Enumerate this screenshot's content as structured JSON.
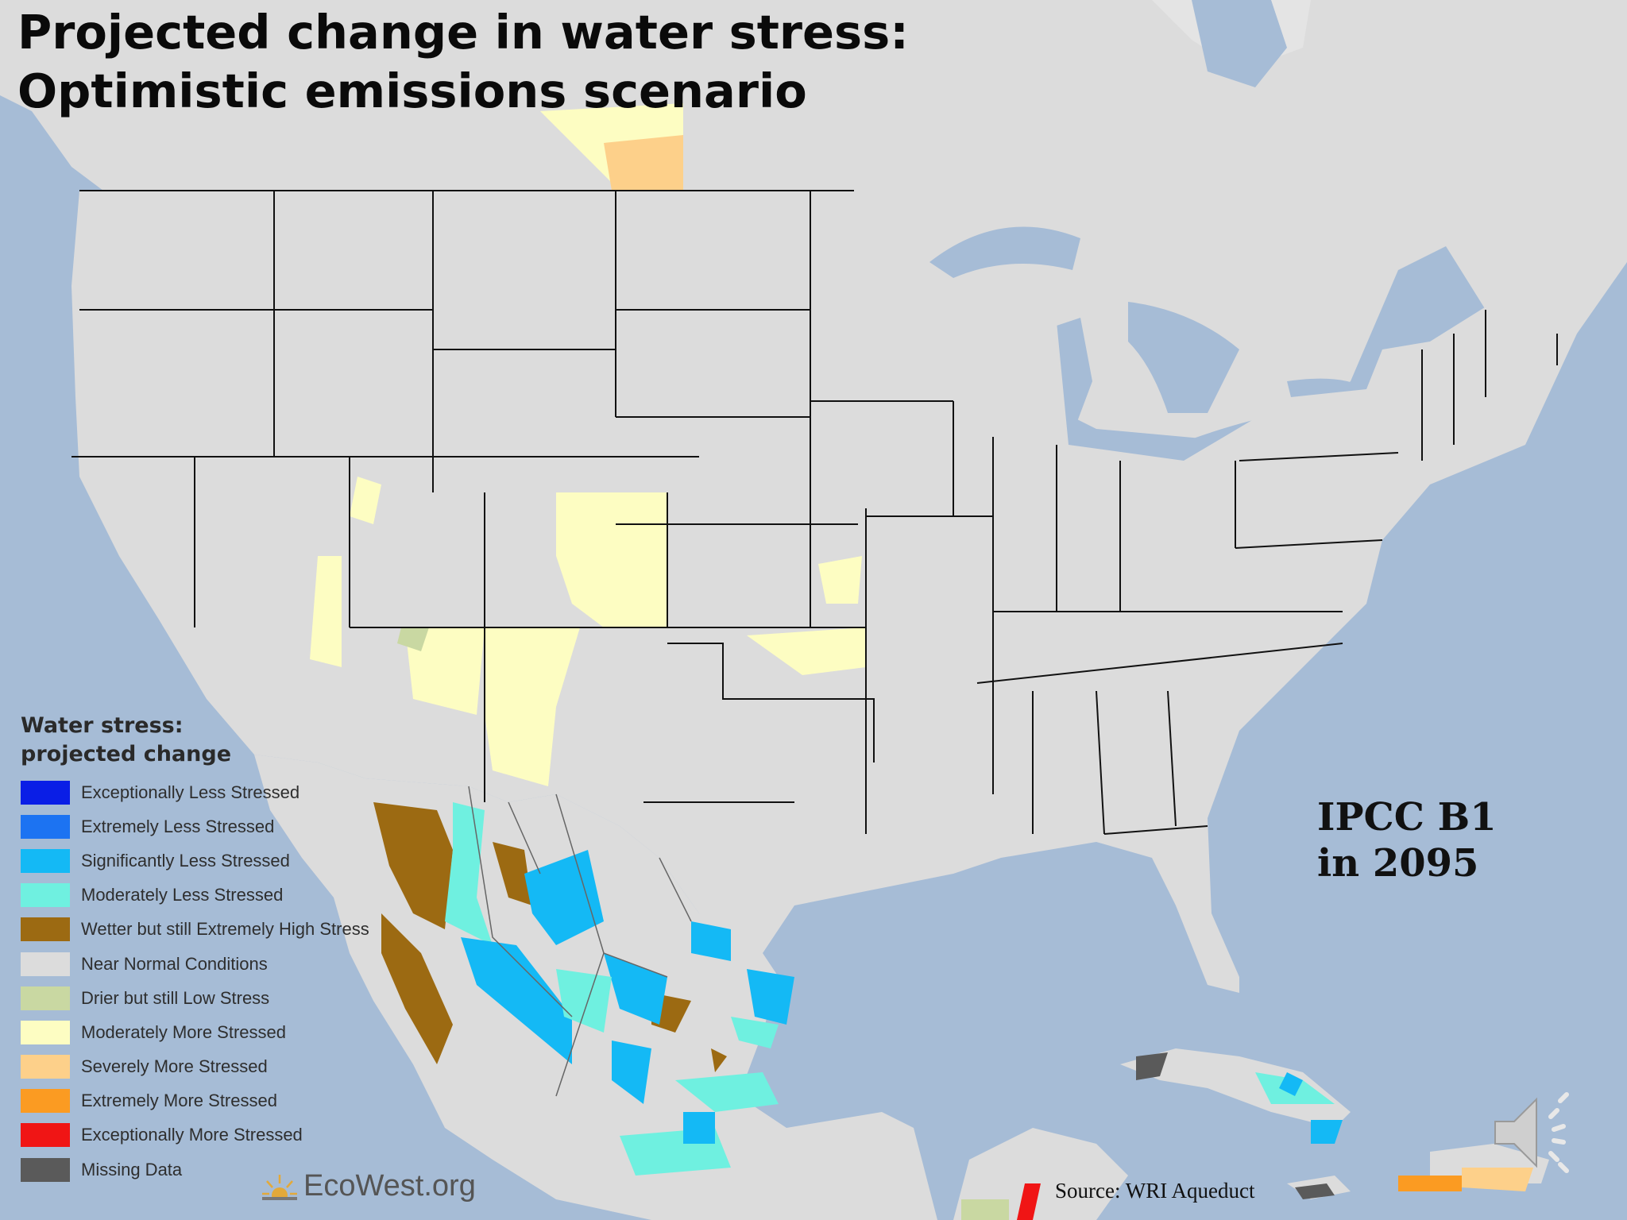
{
  "title": {
    "line1": "Projected change in water stress:",
    "line2": "Optimistic emissions scenario"
  },
  "legend": {
    "heading_line1": "Water stress:",
    "heading_line2": "projected change",
    "items": [
      {
        "label": "Exceptionally Less Stressed",
        "color": "#0a1ee6"
      },
      {
        "label": "Extremely Less Stressed",
        "color": "#1c73f2"
      },
      {
        "label": "Significantly Less Stressed",
        "color": "#14b9f5"
      },
      {
        "label": "Moderately Less Stressed",
        "color": "#6ff0e0"
      },
      {
        "label": "Wetter but still Extremely High Stress",
        "color": "#9c6a12"
      },
      {
        "label": "Near Normal Conditions",
        "color": "#dcdcdc"
      },
      {
        "label": "Drier but still Low Stress",
        "color": "#c9d8a2"
      },
      {
        "label": "Moderately More Stressed",
        "color": "#fdfdc2"
      },
      {
        "label": "Severely More Stressed",
        "color": "#fdd08a"
      },
      {
        "label": "Extremely More Stressed",
        "color": "#fb9b22"
      },
      {
        "label": "Exceptionally More Stressed",
        "color": "#f01515"
      },
      {
        "label": "Missing Data",
        "color": "#5a5a5a"
      }
    ]
  },
  "scenario": {
    "line1": "IPCC B1",
    "line2": "in 2095"
  },
  "source": "Source: WRI Aqueduct",
  "logo": "EcoWest.org",
  "icons": {
    "speaker": "speaker-icon",
    "logo": "sun-logo-icon"
  },
  "colors": {
    "ocean": "#a6bcd6",
    "land": "#dcdcdc",
    "state_border": "#111111"
  }
}
